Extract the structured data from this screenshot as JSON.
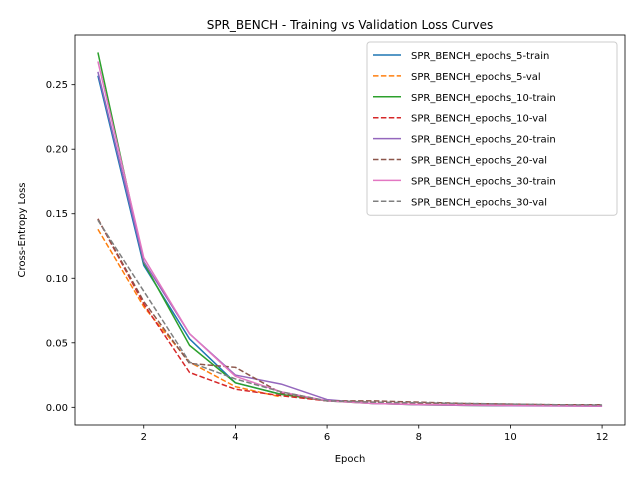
{
  "chart_data": {
    "type": "line",
    "title": "SPR_BENCH - Training vs Validation Loss Curves",
    "xlabel": "Epoch",
    "ylabel": "Cross-Entropy Loss",
    "xlim": [
      0.5,
      12.5
    ],
    "ylim": [
      -0.0137,
      0.2885
    ],
    "xticks": [
      2,
      4,
      6,
      8,
      10,
      12
    ],
    "xtick_labels": [
      "2",
      "4",
      "6",
      "8",
      "10",
      "12"
    ],
    "yticks": [
      0.0,
      0.05,
      0.1,
      0.15,
      0.2,
      0.25
    ],
    "ytick_labels": [
      "0.00",
      "0.05",
      "0.10",
      "0.15",
      "0.20",
      "0.25"
    ],
    "grid": false,
    "legend_position": "upper right",
    "series": [
      {
        "name": "SPR_BENCH_epochs_5-train",
        "color": "#1f77b4",
        "dash": "solid",
        "x": [
          1,
          2,
          3,
          4,
          5
        ],
        "y": [
          0.257,
          0.11,
          0.053,
          0.019,
          0.01
        ]
      },
      {
        "name": "SPR_BENCH_epochs_5-val",
        "color": "#ff7f0e",
        "dash": "dashed",
        "x": [
          1,
          2,
          3,
          4,
          5
        ],
        "y": [
          0.138,
          0.078,
          0.035,
          0.016,
          0.008
        ]
      },
      {
        "name": "SPR_BENCH_epochs_10-train",
        "color": "#2ca02c",
        "dash": "solid",
        "x": [
          1,
          2,
          3,
          4,
          5,
          6,
          7,
          8,
          9,
          10
        ],
        "y": [
          0.275,
          0.112,
          0.048,
          0.019,
          0.01,
          0.005,
          0.003,
          0.002,
          0.0015,
          0.0012
        ]
      },
      {
        "name": "SPR_BENCH_epochs_10-val",
        "color": "#d62728",
        "dash": "dashed",
        "x": [
          1,
          2,
          3,
          4,
          5,
          6,
          7,
          8,
          9,
          10
        ],
        "y": [
          0.146,
          0.08,
          0.027,
          0.014,
          0.009,
          0.005,
          0.004,
          0.003,
          0.0025,
          0.002
        ]
      },
      {
        "name": "SPR_BENCH_epochs_20-train",
        "color": "#9467bd",
        "dash": "solid",
        "x": [
          1,
          2,
          3,
          4,
          5,
          6,
          7,
          8,
          9,
          10,
          11,
          12
        ],
        "y": [
          0.26,
          0.113,
          0.057,
          0.025,
          0.018,
          0.006,
          0.003,
          0.002,
          0.0015,
          0.0012,
          0.001,
          0.0008
        ]
      },
      {
        "name": "SPR_BENCH_epochs_20-val",
        "color": "#8c564b",
        "dash": "dashed",
        "x": [
          1,
          2,
          3,
          4,
          5,
          6,
          7,
          8,
          9,
          10,
          11,
          12
        ],
        "y": [
          0.146,
          0.082,
          0.034,
          0.031,
          0.011,
          0.005,
          0.005,
          0.004,
          0.003,
          0.0025,
          0.002,
          0.002
        ]
      },
      {
        "name": "SPR_BENCH_epochs_30-train",
        "color": "#e377c2",
        "dash": "solid",
        "x": [
          1,
          2,
          3,
          4,
          5,
          6,
          7,
          8,
          9,
          10,
          11,
          12
        ],
        "y": [
          0.268,
          0.116,
          0.057,
          0.024,
          0.012,
          0.005,
          0.003,
          0.0022,
          0.0018,
          0.0015,
          0.0012,
          0.001
        ]
      },
      {
        "name": "SPR_BENCH_epochs_30-val",
        "color": "#7f7f7f",
        "dash": "dashed",
        "x": [
          1,
          2,
          3,
          4,
          5,
          6,
          7,
          8,
          9,
          10,
          11,
          12
        ],
        "y": [
          0.145,
          0.09,
          0.035,
          0.022,
          0.012,
          0.005,
          0.004,
          0.0035,
          0.003,
          0.0025,
          0.002,
          0.0018
        ]
      }
    ]
  }
}
